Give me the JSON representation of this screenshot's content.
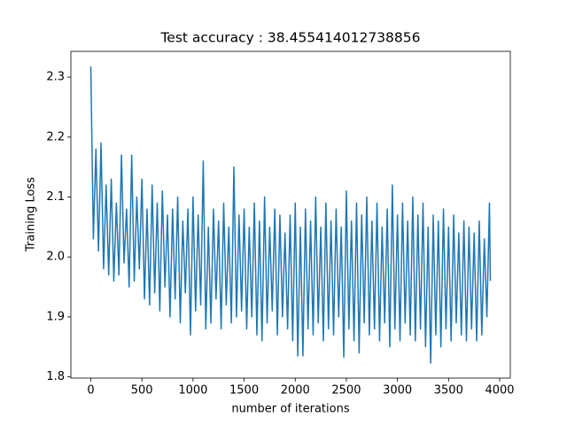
{
  "chart_data": {
    "type": "line",
    "title": "Test accuracy : 38.455414012738856",
    "xlabel": "number of iterations",
    "ylabel": "Training Loss",
    "xlim": [
      -195,
      4104
    ],
    "ylim": [
      1.798,
      2.343
    ],
    "xticks": [
      0,
      500,
      1000,
      1500,
      2000,
      2500,
      3000,
      3500,
      4000
    ],
    "yticks": [
      1.8,
      1.9,
      {
        "value": 2,
        "label": "2.0"
      },
      2.1,
      2.2,
      2.3
    ],
    "x": [
      0,
      25,
      50,
      75,
      100,
      125,
      150,
      175,
      200,
      225,
      250,
      275,
      300,
      325,
      350,
      375,
      400,
      425,
      450,
      475,
      500,
      525,
      550,
      575,
      600,
      625,
      650,
      675,
      700,
      725,
      750,
      775,
      800,
      825,
      850,
      875,
      900,
      925,
      950,
      975,
      1000,
      1025,
      1050,
      1075,
      1100,
      1125,
      1150,
      1175,
      1200,
      1225,
      1250,
      1275,
      1300,
      1325,
      1350,
      1375,
      1400,
      1425,
      1450,
      1475,
      1500,
      1525,
      1550,
      1575,
      1600,
      1625,
      1650,
      1675,
      1700,
      1725,
      1750,
      1775,
      1800,
      1825,
      1850,
      1875,
      1900,
      1925,
      1950,
      1975,
      2000,
      2025,
      2050,
      2075,
      2100,
      2125,
      2150,
      2175,
      2200,
      2225,
      2250,
      2275,
      2300,
      2325,
      2350,
      2375,
      2400,
      2425,
      2450,
      2475,
      2500,
      2525,
      2550,
      2575,
      2600,
      2625,
      2650,
      2675,
      2700,
      2725,
      2750,
      2775,
      2800,
      2825,
      2850,
      2875,
      2900,
      2925,
      2950,
      2975,
      3000,
      3025,
      3050,
      3075,
      3100,
      3125,
      3150,
      3175,
      3200,
      3225,
      3250,
      3275,
      3300,
      3325,
      3350,
      3375,
      3400,
      3425,
      3450,
      3475,
      3500,
      3525,
      3550,
      3575,
      3600,
      3625,
      3650,
      3675,
      3700,
      3725,
      3750,
      3775,
      3800,
      3825,
      3850,
      3875,
      3900,
      3909
    ],
    "series": [
      {
        "color": "#1f77b4",
        "values": [
          2.318,
          2.03,
          2.18,
          2.01,
          2.19,
          1.98,
          2.12,
          1.97,
          2.13,
          1.96,
          2.09,
          1.97,
          2.17,
          1.99,
          2.08,
          1.95,
          2.17,
          1.96,
          2.1,
          1.98,
          2.13,
          1.93,
          2.08,
          1.92,
          2.12,
          1.94,
          2.09,
          1.91,
          2.11,
          1.95,
          2.07,
          1.9,
          2.08,
          1.93,
          2.1,
          1.89,
          2.06,
          1.94,
          2.08,
          1.87,
          2.1,
          1.91,
          2.07,
          1.92,
          2.16,
          1.88,
          2.05,
          1.89,
          2.08,
          1.93,
          2.06,
          1.88,
          2.09,
          1.92,
          2.05,
          1.89,
          2.15,
          1.9,
          2.07,
          1.91,
          2.08,
          1.88,
          2.05,
          1.9,
          2.09,
          1.87,
          2.06,
          1.86,
          2.1,
          1.89,
          2.05,
          1.91,
          2.08,
          1.87,
          2.07,
          1.9,
          2.04,
          1.88,
          2.07,
          1.86,
          2.09,
          1.835,
          2.05,
          1.835,
          2.08,
          1.88,
          2.06,
          1.87,
          2.1,
          1.89,
          2.05,
          1.86,
          2.09,
          1.88,
          2.06,
          1.87,
          2.08,
          1.9,
          2.05,
          1.833,
          2.11,
          1.88,
          2.06,
          1.86,
          2.09,
          1.84,
          2.07,
          1.89,
          2.1,
          1.87,
          2.06,
          1.88,
          2.09,
          1.86,
          2.05,
          1.89,
          2.08,
          1.85,
          2.12,
          1.88,
          2.07,
          1.86,
          2.09,
          1.89,
          2.06,
          1.87,
          2.1,
          1.86,
          2.07,
          1.88,
          2.09,
          1.85,
          2.05,
          1.823,
          2.07,
          1.87,
          2.06,
          1.85,
          2.08,
          1.88,
          2.05,
          1.86,
          2.07,
          1.89,
          2.04,
          1.87,
          2.06,
          1.86,
          2.05,
          1.88,
          2.04,
          1.86,
          2.06,
          1.87,
          2.03,
          1.9,
          2.09,
          1.96
        ]
      }
    ]
  }
}
